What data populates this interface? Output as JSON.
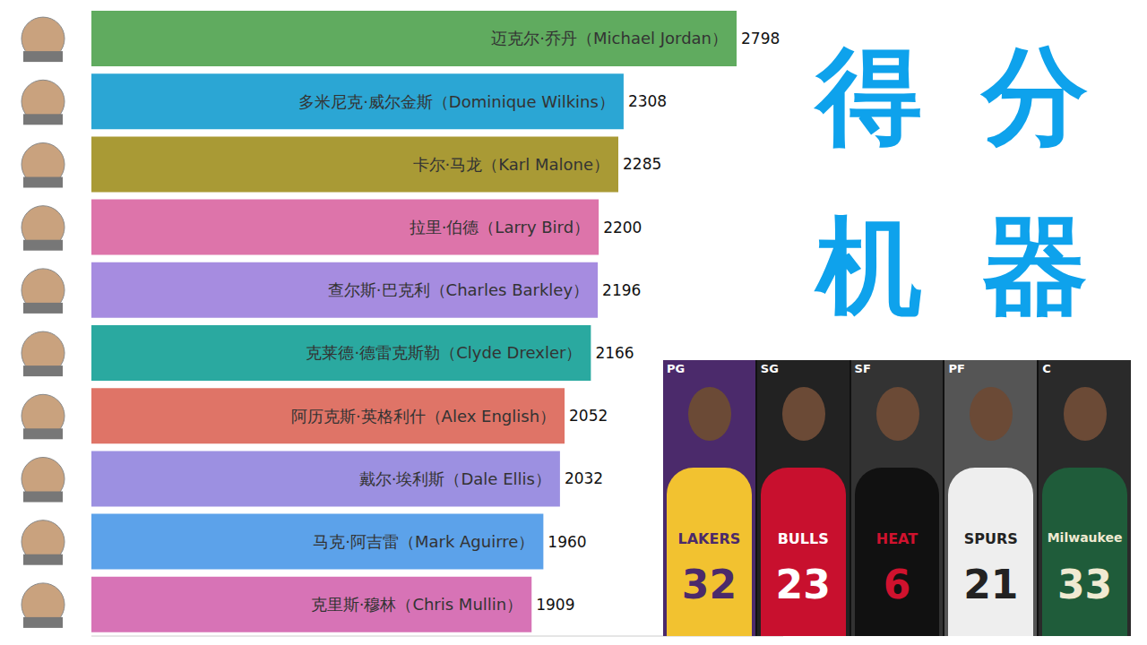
{
  "chart_data": {
    "type": "bar",
    "orientation": "horizontal",
    "categories": [
      "迈克尔·乔丹（Michael Jordan）",
      "多米尼克·威尔金斯（Dominique Wilkins）",
      "卡尔·马龙（Karl Malone）",
      "拉里·伯德（Larry Bird）",
      "查尔斯·巴克利（Charles Barkley）",
      "克莱德·德雷克斯勒（Clyde Drexler）",
      "阿历克斯·英格利什（Alex English）",
      "戴尔·埃利斯（Dale Ellis）",
      "马克·阿吉雷（Mark Aguirre）",
      "克里斯·穆林（Chris Mullin）"
    ],
    "values": [
      2798,
      2308,
      2285,
      2200,
      2196,
      2166,
      2052,
      2032,
      1960,
      1909
    ],
    "colors": [
      "#60ab5f",
      "#2ba6d4",
      "#a99a35",
      "#dd74aa",
      "#a68ce0",
      "#2aa9a0",
      "#df7467",
      "#9c90e1",
      "#5ca2ea",
      "#d773b6"
    ],
    "xlim": [
      0,
      3000
    ],
    "xticks": [
      0,
      3000
    ],
    "tick_labels": false,
    "data_labels": true,
    "grid": false
  },
  "side_title": "得分机器",
  "photo": {
    "panels": [
      {
        "label": "PG",
        "jersey": "LAKERS",
        "number": 32
      },
      {
        "label": "SG",
        "jersey": "BULLS",
        "number": 23
      },
      {
        "label": "SF",
        "jersey": "HEAT",
        "number": 6
      },
      {
        "label": "PF",
        "jersey": "SPURS",
        "number": 21
      },
      {
        "label": "C",
        "jersey": "Milwaukee",
        "number": 33
      }
    ]
  }
}
